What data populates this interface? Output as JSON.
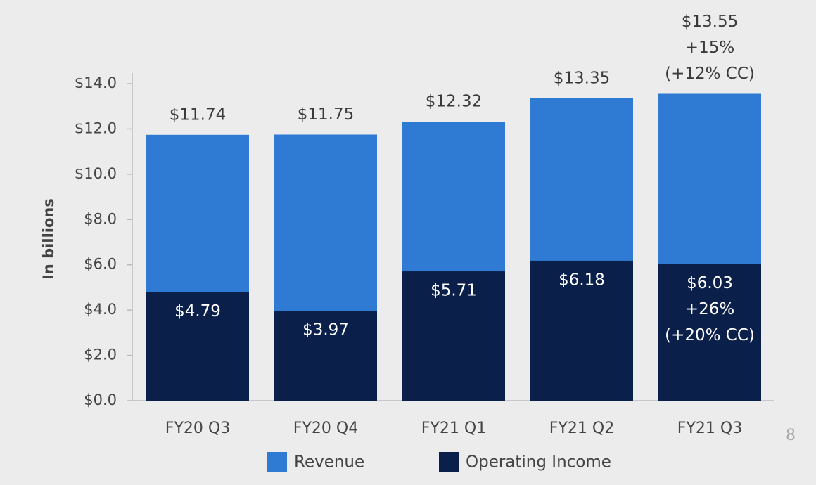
{
  "chart_data": {
    "type": "bar",
    "barmode": "overlay",
    "ylabel": "In billions",
    "categories": [
      "FY20 Q3",
      "FY20 Q4",
      "FY21 Q1",
      "FY21 Q2",
      "FY21 Q3"
    ],
    "series": [
      {
        "name": "Revenue",
        "color": "#2f7bd4",
        "values": [
          11.74,
          11.75,
          12.32,
          13.35,
          13.55
        ],
        "value_labels": [
          "$11.74",
          "$11.75",
          "$12.32",
          "$13.35",
          "$13.55"
        ],
        "value_notes": [
          null,
          null,
          null,
          null,
          [
            "+15%",
            "(+12% CC)"
          ]
        ]
      },
      {
        "name": "Operating Income",
        "color": "#0b1f4b",
        "values": [
          4.79,
          3.97,
          5.71,
          6.18,
          6.03
        ],
        "value_labels": [
          "$4.79",
          "$3.97",
          "$5.71",
          "$6.18",
          "$6.03"
        ],
        "value_notes": [
          null,
          null,
          null,
          null,
          [
            "+26%",
            "(+20% CC)"
          ]
        ]
      }
    ],
    "ylim": [
      0,
      14
    ],
    "yticks": [
      {
        "value": 0,
        "label": "$0.0"
      },
      {
        "value": 2,
        "label": "$2.0"
      },
      {
        "value": 4,
        "label": "$4.0"
      },
      {
        "value": 6,
        "label": "$6.0"
      },
      {
        "value": 8,
        "label": "$8.0"
      },
      {
        "value": 10,
        "label": "$10.0"
      },
      {
        "value": 12,
        "label": "$12.0"
      },
      {
        "value": 14,
        "label": "$14.0"
      }
    ],
    "page_number": "8"
  }
}
